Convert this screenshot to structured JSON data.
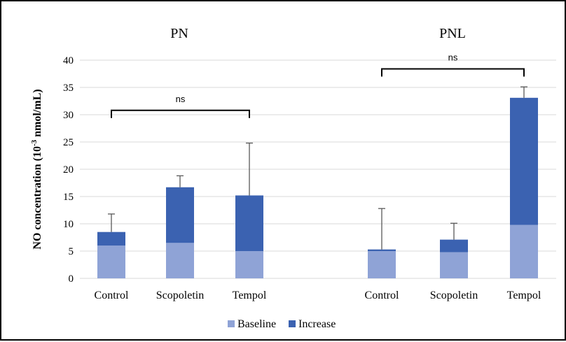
{
  "chart_data": {
    "type": "bar",
    "stacked": true,
    "ylabel_main": "NO concentration (10",
    "ylabel_sup": "-3",
    "ylabel_end": " nmol/mL)",
    "ylim": [
      0,
      40
    ],
    "yticks": [
      0,
      5,
      10,
      15,
      20,
      25,
      30,
      35,
      40
    ],
    "grid": true,
    "legend_position": "bottom",
    "colors": {
      "Baseline": "#8fa3d6",
      "Increase": "#3b62b1"
    },
    "groups": [
      {
        "title": "PN",
        "categories": [
          "Control",
          "Scopoletin",
          "Tempol"
        ]
      },
      {
        "title": "PNL",
        "categories": [
          "Control",
          "Scopoletin",
          "Tempol"
        ]
      }
    ],
    "series": [
      {
        "name": "Baseline",
        "values": [
          6.0,
          6.5,
          5.0,
          5.0,
          4.8,
          9.8
        ]
      },
      {
        "name": "Increase",
        "values": [
          2.5,
          10.2,
          10.2,
          0.3,
          2.3,
          23.3
        ]
      }
    ],
    "error_bar_tops": [
      11.8,
      18.8,
      24.8,
      12.8,
      10.1,
      35.1
    ],
    "comparisons": [
      {
        "label": "ns",
        "from_index": 0,
        "to_index": 2,
        "y": 30.8
      },
      {
        "label": "ns",
        "from_index": 3,
        "to_index": 5,
        "y": 38.4
      }
    ]
  }
}
